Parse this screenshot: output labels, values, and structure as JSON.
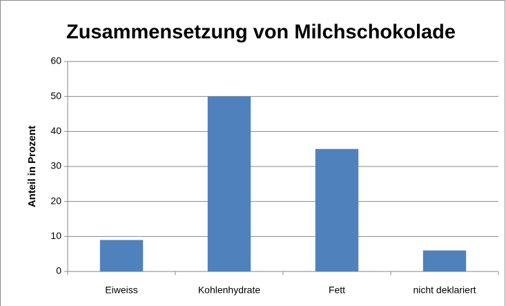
{
  "chart_data": {
    "type": "bar",
    "title": "Zusammensetzung von Milchschokolade",
    "y_label": "Anteil in Prozent",
    "categories": [
      "Eiweiss",
      "Kohlenhydrate",
      "Fett",
      "nicht deklariert"
    ],
    "values": [
      9,
      50,
      35,
      6
    ],
    "color": "#4f81bd",
    "ylim": [
      0,
      60
    ],
    "yticks": [
      0,
      10,
      20,
      30,
      40,
      50,
      60
    ],
    "grid": true
  }
}
